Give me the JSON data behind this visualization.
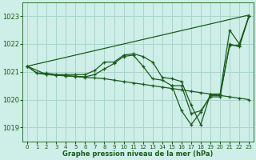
{
  "xlabel": "Graphe pression niveau de la mer (hPa)",
  "background_color": "#ceeee8",
  "grid_color": "#aad4cc",
  "line_color": "#1a5c1a",
  "xlim": [
    -0.5,
    23.5
  ],
  "ylim": [
    1018.5,
    1023.5
  ],
  "yticks": [
    1019,
    1020,
    1021,
    1022,
    1023
  ],
  "xticks": [
    0,
    1,
    2,
    3,
    4,
    5,
    6,
    7,
    8,
    9,
    10,
    11,
    12,
    13,
    14,
    15,
    16,
    17,
    18,
    19,
    20,
    21,
    22,
    23
  ],
  "lines": [
    {
      "x": [
        0,
        1,
        2,
        3,
        4,
        5,
        6,
        7,
        8,
        9,
        10,
        11,
        12,
        13,
        14,
        15,
        16,
        17,
        18,
        19,
        20,
        21,
        22,
        23
      ],
      "y": [
        1021.2,
        1021.28,
        1021.36,
        1021.44,
        1021.52,
        1021.6,
        1021.68,
        1021.76,
        1021.84,
        1021.92,
        1022.0,
        1022.08,
        1022.16,
        1022.24,
        1022.32,
        1022.4,
        1022.48,
        1022.56,
        1022.64,
        1022.72,
        1022.8,
        1022.88,
        1022.96,
        1023.04
      ],
      "marker": null
    },
    {
      "x": [
        0,
        1,
        2,
        3,
        4,
        5,
        6,
        7,
        8,
        9,
        10,
        11,
        12,
        13,
        14,
        15,
        16,
        17,
        18,
        19,
        20,
        21,
        22,
        23
      ],
      "y": [
        1021.2,
        1020.95,
        1020.95,
        1020.9,
        1020.9,
        1020.9,
        1020.9,
        1021.05,
        1021.35,
        1021.35,
        1021.6,
        1021.65,
        1021.55,
        1021.35,
        1020.8,
        1020.75,
        1020.65,
        1019.8,
        1019.1,
        1020.2,
        1020.2,
        1022.5,
        1022.0,
        1023.0
      ],
      "marker": "+"
    },
    {
      "x": [
        0,
        1,
        2,
        3,
        4,
        5,
        6,
        7,
        8,
        9,
        10,
        11,
        12,
        13,
        14,
        15,
        16,
        17,
        18,
        19,
        20,
        21,
        22,
        23
      ],
      "y": [
        1021.2,
        1020.95,
        1020.9,
        1020.88,
        1020.85,
        1020.83,
        1020.8,
        1020.78,
        1020.75,
        1020.7,
        1020.65,
        1020.6,
        1020.55,
        1020.5,
        1020.45,
        1020.4,
        1020.35,
        1020.3,
        1020.25,
        1020.2,
        1020.15,
        1020.1,
        1020.05,
        1020.0
      ],
      "marker": "+"
    },
    {
      "x": [
        0,
        2,
        3,
        4,
        5,
        6,
        7,
        8,
        9,
        10,
        11,
        12,
        13,
        14,
        15,
        16,
        17,
        18,
        19,
        20,
        21,
        22,
        23
      ],
      "y": [
        1021.2,
        1020.9,
        1020.88,
        1020.86,
        1020.84,
        1020.82,
        1020.9,
        1021.1,
        1021.3,
        1021.55,
        1021.6,
        1021.2,
        1020.75,
        1020.7,
        1020.5,
        1020.5,
        1019.5,
        1019.6,
        1020.1,
        1020.1,
        1022.0,
        1021.9,
        1023.0
      ],
      "marker": "+"
    },
    {
      "x": [
        15,
        16,
        17,
        18,
        19,
        20,
        21,
        22,
        23
      ],
      "y": [
        1020.5,
        1019.6,
        1019.1,
        1019.55,
        1020.15,
        1020.15,
        1021.95,
        1021.95,
        1023.0
      ],
      "marker": "+"
    }
  ]
}
